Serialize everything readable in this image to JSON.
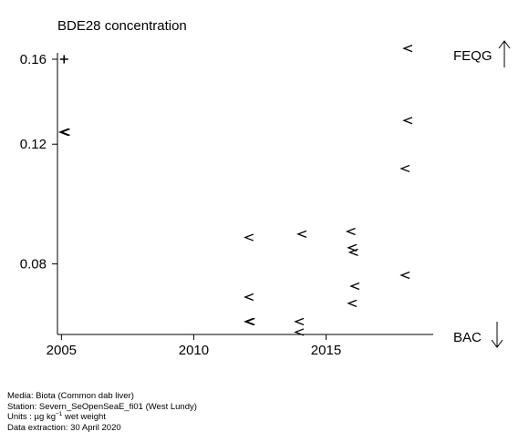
{
  "chart_data": {
    "type": "scatter",
    "title": "BDE28 concentration",
    "xlabel": "",
    "ylabel": "",
    "xlim": [
      2004.85,
      2019.05
    ],
    "ylim": [
      0.063,
      0.1635
    ],
    "y_scale": "log",
    "grid": false,
    "legend": "none",
    "x_ticks": [
      {
        "value": 2005,
        "label": "2005"
      },
      {
        "value": 2010,
        "label": "2010"
      },
      {
        "value": 2015,
        "label": "2015"
      }
    ],
    "y_ticks": [
      {
        "value": 0.08,
        "label": "0.08"
      },
      {
        "value": 0.12,
        "label": "0.12"
      },
      {
        "value": 0.16,
        "label": "0.16"
      }
    ],
    "reference_lines": [
      {
        "label": "FEQG",
        "direction": "above"
      },
      {
        "label": "BAC",
        "direction": "below"
      }
    ],
    "series": [
      {
        "marker": "+",
        "points": [
          {
            "x": 2005.1,
            "y": 0.16
          }
        ]
      },
      {
        "marker": "<",
        "points": [
          {
            "x": 2005.1,
            "y": 0.125
          },
          {
            "x": 2005.13,
            "y": 0.125
          },
          {
            "x": 2005.16,
            "y": 0.125
          },
          {
            "x": 2012.1,
            "y": 0.0875
          },
          {
            "x": 2012.1,
            "y": 0.0715
          },
          {
            "x": 2012.1,
            "y": 0.0658
          },
          {
            "x": 2012.15,
            "y": 0.0658
          },
          {
            "x": 2014.0,
            "y": 0.0658
          },
          {
            "x": 2014.0,
            "y": 0.0635
          },
          {
            "x": 2014.1,
            "y": 0.0885
          },
          {
            "x": 2015.95,
            "y": 0.0893
          },
          {
            "x": 2016.0,
            "y": 0.0845
          },
          {
            "x": 2016.05,
            "y": 0.0832
          },
          {
            "x": 2016.1,
            "y": 0.0742
          },
          {
            "x": 2016.0,
            "y": 0.07
          },
          {
            "x": 2018.0,
            "y": 0.077
          },
          {
            "x": 2018.0,
            "y": 0.1105
          },
          {
            "x": 2018.1,
            "y": 0.13
          },
          {
            "x": 2018.1,
            "y": 0.166
          }
        ]
      }
    ]
  },
  "footer": {
    "media": "Media: Biota (Common dab liver)",
    "station": "Station: Severn_SeOpenSeaE_fi01 (West Lundy)",
    "units_prefix": "Units : µg kg",
    "units_sup": "−1",
    "units_suffix": " wet weight",
    "extraction": "Data extraction: 30 April 2020"
  }
}
